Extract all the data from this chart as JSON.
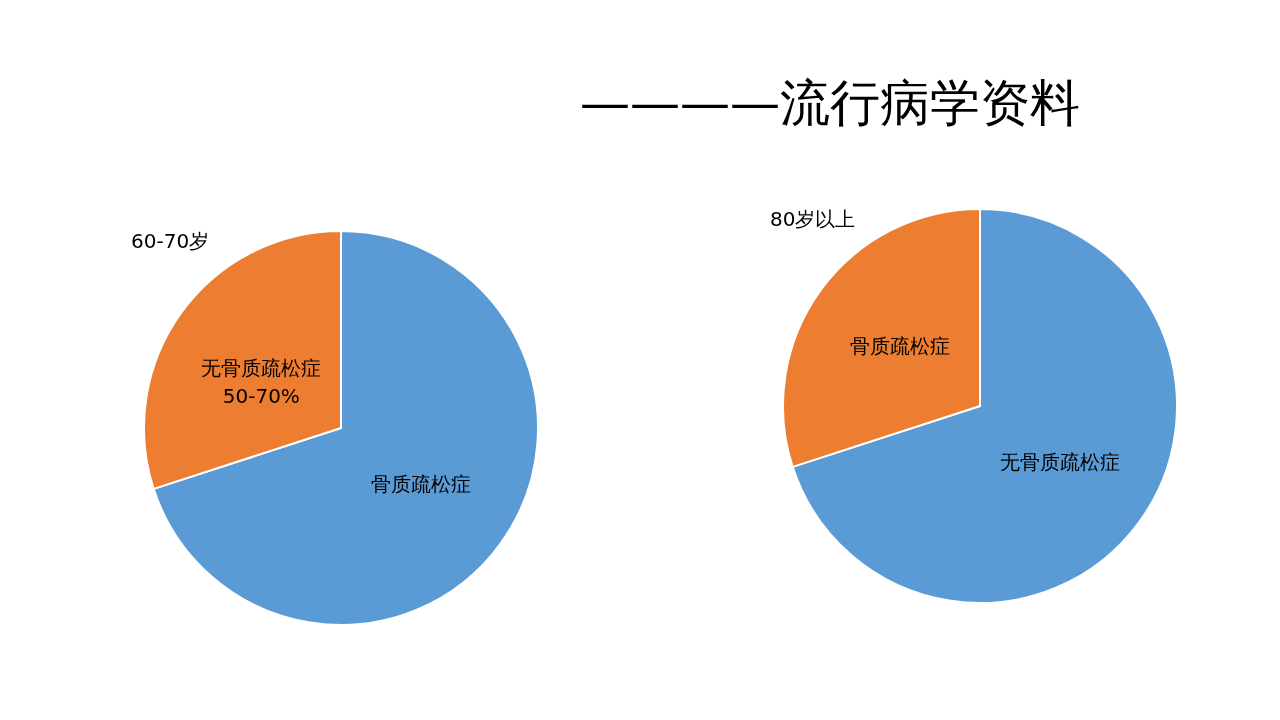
{
  "chart_data": [
    {
      "type": "other",
      "title": "————流行病学资料"
    },
    {
      "type": "pie",
      "title": "60-70岁",
      "categories": [
        "骨质疏松症",
        "无骨质疏松症"
      ],
      "values": [
        70,
        30
      ],
      "colors": [
        "#5b9bd5",
        "#ed7d31"
      ],
      "annotations": [
        "50-70%"
      ],
      "legend": false
    },
    {
      "type": "pie",
      "title": "80岁以上",
      "categories": [
        "无骨质疏松症",
        "骨质疏松症"
      ],
      "values": [
        70,
        30
      ],
      "colors": [
        "#5b9bd5",
        "#ed7d31"
      ],
      "legend": false
    }
  ]
}
